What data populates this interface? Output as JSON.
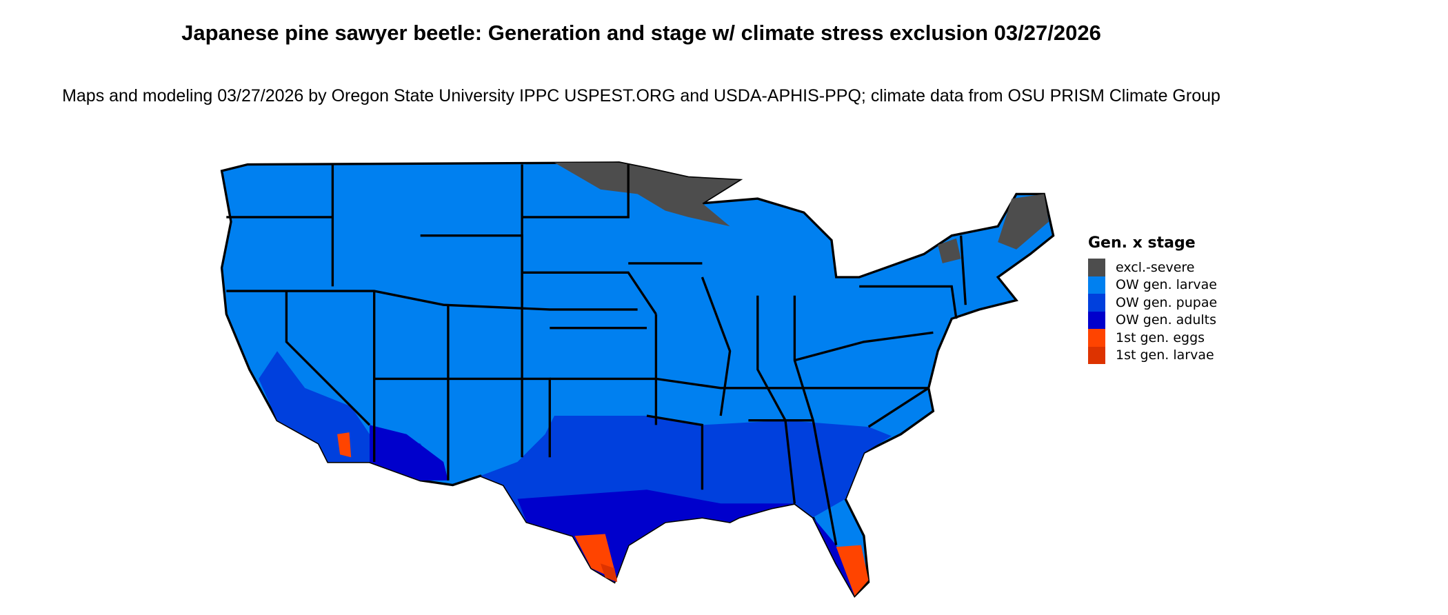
{
  "title": "Japanese pine sawyer beetle: Generation and stage w/ climate stress exclusion 03/27/2026",
  "subtitle": "Maps and modeling 03/27/2026 by Oregon State University IPPC USPEST.ORG and USDA-APHIS-PPQ; climate data from OSU PRISM Climate Group",
  "legend": {
    "title": "Gen. x stage",
    "items": [
      {
        "label": "excl.-severe",
        "color": "#4d4d4d"
      },
      {
        "label": "OW gen. larvae",
        "color": "#0080f0"
      },
      {
        "label": "OW gen. pupae",
        "color": "#0040dd"
      },
      {
        "label": "OW gen. adults",
        "color": "#0000cc"
      },
      {
        "label": "1st gen. eggs",
        "color": "#ff4400"
      },
      {
        "label": "1st gen. larvae",
        "color": "#dd3300"
      }
    ]
  }
}
